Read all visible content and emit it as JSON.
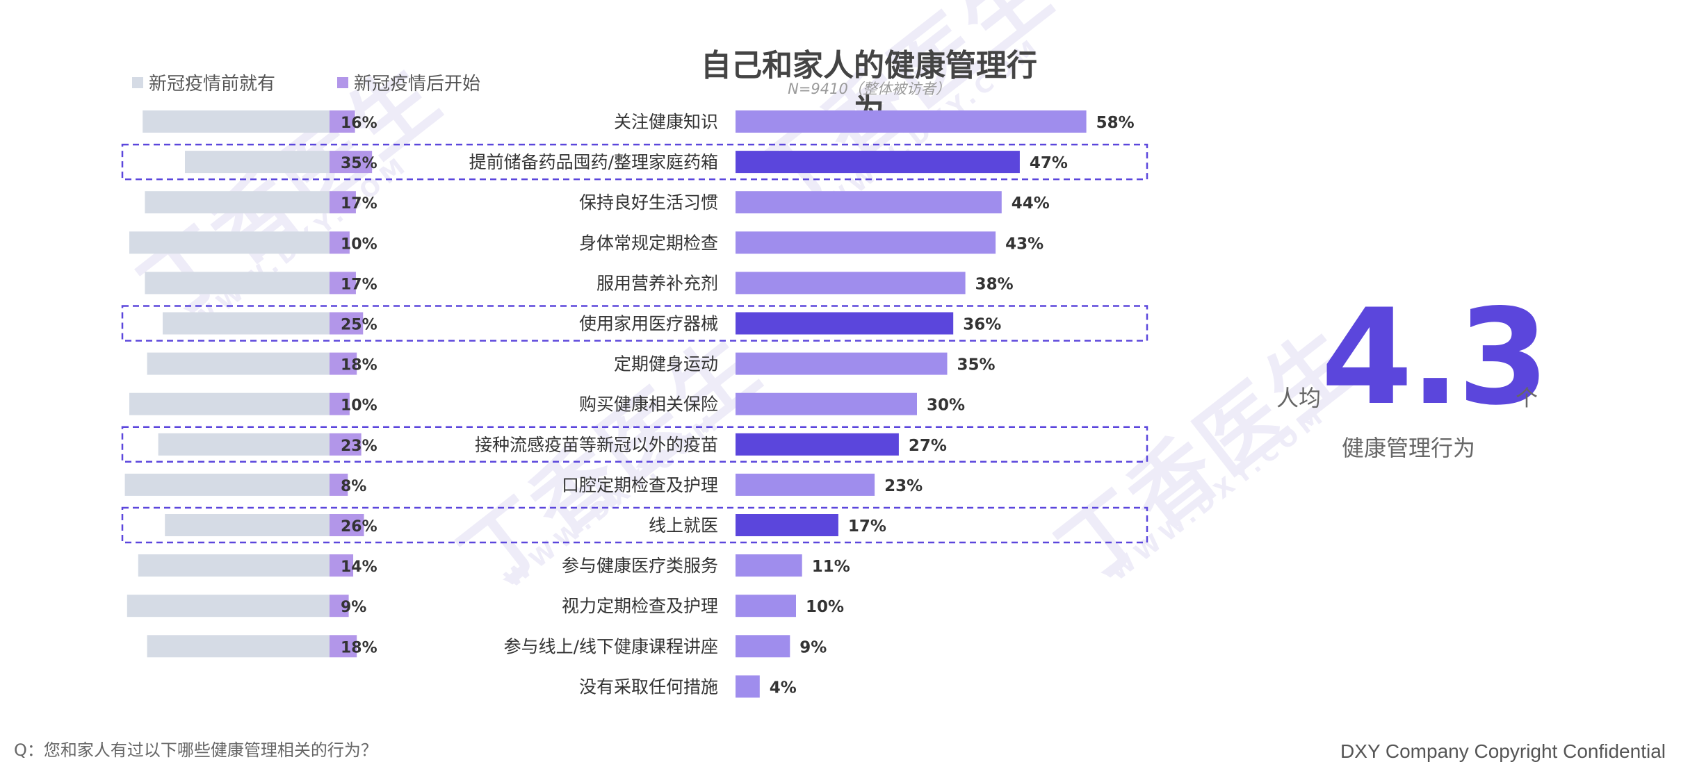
{
  "chart_data": {
    "type": "bar",
    "title": "自己和家人的健康管理行为",
    "subtitle": "N=9410（整体被访者）",
    "legend": [
      "新冠疫情前就有",
      "新冠疫情后开始"
    ],
    "categories": [
      "关注健康知识",
      "提前储备药品囤药/整理家庭药箱",
      "保持良好生活习惯",
      "身体常规定期检查",
      "服用营养补充剂",
      "使用家用医疗器械",
      "定期健身运动",
      "购买健康相关保险",
      "接种流感疫苗等新冠以外的疫苗",
      "口腔定期检查及护理",
      "线上就医",
      "参与健康医疗类服务",
      "视力定期检查及护理",
      "参与线上/线下健康课程讲座",
      "没有采取任何措施"
    ],
    "total_values": [
      58,
      47,
      44,
      43,
      38,
      36,
      35,
      30,
      27,
      23,
      17,
      11,
      10,
      9,
      4
    ],
    "total_labels": [
      "58%",
      "47%",
      "44%",
      "43%",
      "38%",
      "36%",
      "35%",
      "30%",
      "27%",
      "23%",
      "17%",
      "11%",
      "10%",
      "9%",
      "4%"
    ],
    "highlighted": [
      false,
      true,
      false,
      false,
      false,
      true,
      false,
      false,
      true,
      false,
      true,
      false,
      false,
      false,
      false
    ],
    "after_values": [
      16,
      35,
      17,
      10,
      17,
      25,
      18,
      10,
      23,
      8,
      26,
      14,
      9,
      18
    ],
    "after_labels": [
      "16%",
      "35%",
      "17%",
      "10%",
      "17%",
      "25%",
      "18%",
      "10%",
      "23%",
      "8%",
      "26%",
      "14%",
      "9%",
      "18%"
    ],
    "before_values": [
      84,
      65,
      83,
      90,
      83,
      75,
      82,
      90,
      77,
      92,
      74,
      86,
      91,
      82
    ]
  },
  "colors": {
    "before": "#d5dbe5",
    "after": "#b296e9",
    "total": "#9f8ded",
    "total_highlight": "#5b46dc",
    "highlight_border": "#5b46dc"
  },
  "stat": {
    "prefix": "人均",
    "value": "4.3",
    "suffix": "个",
    "label": "健康管理行为"
  },
  "footer": {
    "question": "Q：您和家人有过以下哪些健康管理相关的行为？",
    "copyright": "DXY Company Copyright Confidential"
  },
  "watermark": {
    "text": "丁香医生",
    "sub": "WWW.DXY.COM"
  }
}
